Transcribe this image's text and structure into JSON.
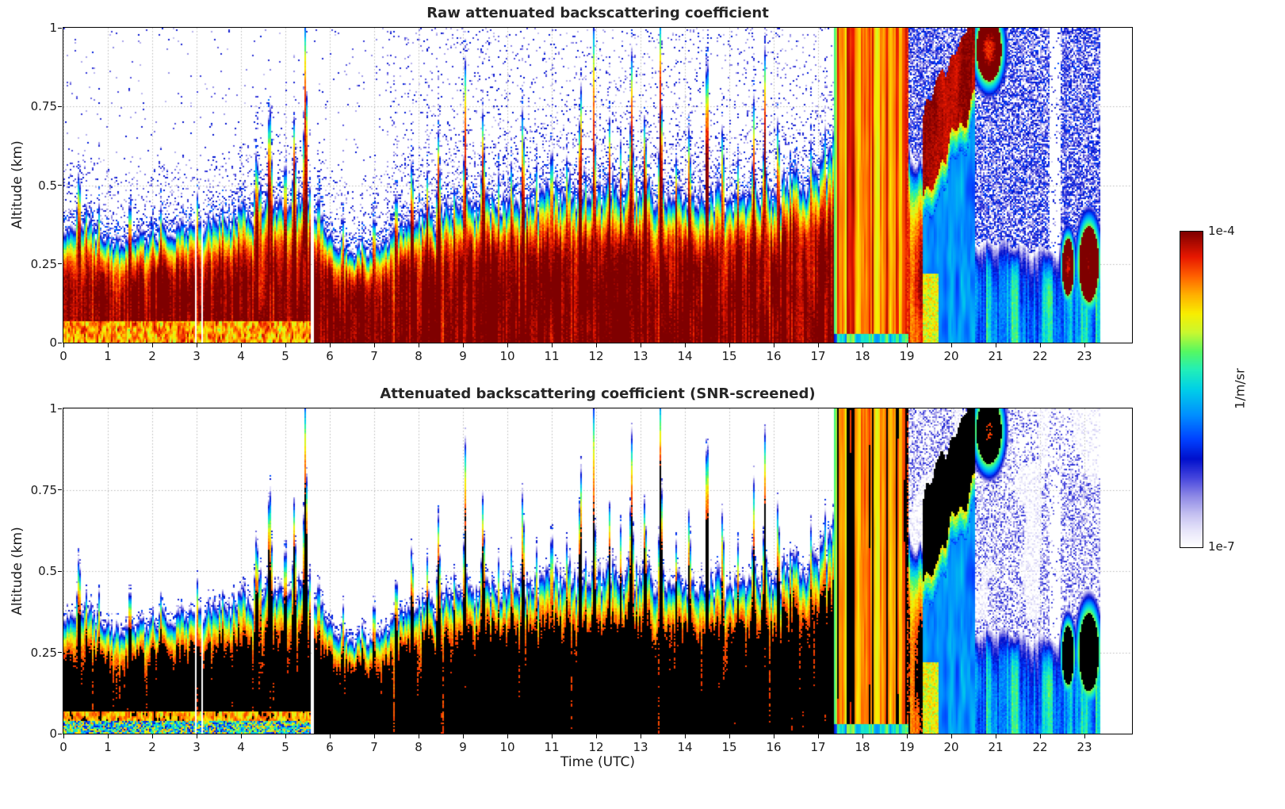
{
  "figure": {
    "background": "#ffffff"
  },
  "panels": [
    {
      "id": "raw",
      "title": "Raw attenuated backscattering coefficient",
      "screened": false
    },
    {
      "id": "screened",
      "title": "Attenuated backscattering coefficient (SNR-screened)",
      "screened": true
    }
  ],
  "axes": {
    "x": {
      "label": "Time (UTC)",
      "max": 24.07,
      "tick_values": [
        0,
        1,
        2,
        3,
        4,
        5,
        6,
        7,
        8,
        9,
        10,
        11,
        12,
        13,
        14,
        15,
        16,
        17,
        18,
        19,
        20,
        21,
        22,
        23
      ],
      "tick_labels": [
        "0",
        "1",
        "2",
        "3",
        "4",
        "5",
        "6",
        "7",
        "8",
        "9",
        "10",
        "11",
        "12",
        "13",
        "14",
        "15",
        "16",
        "17",
        "18",
        "19",
        "20",
        "21",
        "22",
        "23"
      ]
    },
    "y": {
      "label": "Altitude (km)",
      "min": 0,
      "max": 1,
      "tick_values": [
        0,
        0.25,
        0.5,
        0.75,
        1
      ],
      "tick_labels": [
        "0",
        "0.25",
        "0.5",
        "0.75",
        "1"
      ]
    }
  },
  "colorbar": {
    "max_label": "1e-4",
    "min_label": "1e-7",
    "units": "1/m/sr",
    "log10_min": -7,
    "log10_max": -4,
    "stops": [
      {
        "p": 0.0,
        "c": "#ffffff"
      },
      {
        "p": 0.05,
        "c": "#e8e6fa"
      },
      {
        "p": 0.1,
        "c": "#c8c4f2"
      },
      {
        "p": 0.16,
        "c": "#8f8ae6"
      },
      {
        "p": 0.22,
        "c": "#4444dd"
      },
      {
        "p": 0.28,
        "c": "#0010cc"
      },
      {
        "p": 0.34,
        "c": "#0040ff"
      },
      {
        "p": 0.42,
        "c": "#0090ff"
      },
      {
        "p": 0.5,
        "c": "#00d0e8"
      },
      {
        "p": 0.56,
        "c": "#20eebb"
      },
      {
        "p": 0.62,
        "c": "#55f862"
      },
      {
        "p": 0.68,
        "c": "#c8f830"
      },
      {
        "p": 0.74,
        "c": "#f8ee00"
      },
      {
        "p": 0.8,
        "c": "#ffb000"
      },
      {
        "p": 0.86,
        "c": "#ff6000"
      },
      {
        "p": 0.92,
        "c": "#e81800"
      },
      {
        "p": 1.0,
        "c": "#7f0000"
      }
    ]
  },
  "chart_data": {
    "type": "heatmap",
    "x_range_hours": [
      0,
      23.35
    ],
    "y_range_km": [
      0,
      1
    ],
    "value_units": "1/m/sr",
    "value_log10_range": [
      -7,
      -4
    ],
    "screened_black_above_log10": -4.3,
    "surface_log10_value": -3.95,
    "boundary_layer_top_km": {
      "t": [
        0,
        0.5,
        1,
        2,
        3,
        4,
        4.7,
        5,
        5.5,
        6,
        6.5,
        7,
        7.5,
        8,
        9,
        10,
        11,
        12,
        13,
        14,
        15,
        16,
        16.8,
        17.35
      ],
      "h": [
        0.38,
        0.41,
        0.34,
        0.35,
        0.37,
        0.42,
        0.5,
        0.44,
        0.48,
        0.33,
        0.3,
        0.32,
        0.36,
        0.4,
        0.43,
        0.46,
        0.48,
        0.5,
        0.5,
        0.46,
        0.47,
        0.5,
        0.55,
        0.62
      ]
    },
    "plumes": [
      {
        "t": 0.35,
        "h": 0.55,
        "w": 0.1
      },
      {
        "t": 0.8,
        "h": 0.45,
        "w": 0.08
      },
      {
        "t": 1.5,
        "h": 0.45,
        "w": 0.1
      },
      {
        "t": 2.2,
        "h": 0.44,
        "w": 0.1
      },
      {
        "t": 3.0,
        "h": 0.5,
        "w": 0.1
      },
      {
        "t": 3.6,
        "h": 0.45,
        "w": 0.08
      },
      {
        "t": 4.35,
        "h": 0.62,
        "w": 0.1
      },
      {
        "t": 4.65,
        "h": 0.78,
        "w": 0.09
      },
      {
        "t": 5.0,
        "h": 0.6,
        "w": 0.08
      },
      {
        "t": 5.2,
        "h": 0.72,
        "w": 0.07
      },
      {
        "t": 5.45,
        "h": 1.06,
        "w": 0.06
      },
      {
        "t": 5.75,
        "h": 0.5,
        "w": 0.07
      },
      {
        "t": 6.3,
        "h": 0.4,
        "w": 0.08
      },
      {
        "t": 7.0,
        "h": 0.42,
        "w": 0.08
      },
      {
        "t": 7.5,
        "h": 0.5,
        "w": 0.07
      },
      {
        "t": 7.85,
        "h": 0.6,
        "w": 0.07
      },
      {
        "t": 8.2,
        "h": 0.55,
        "w": 0.07
      },
      {
        "t": 8.45,
        "h": 0.68,
        "w": 0.07
      },
      {
        "t": 8.8,
        "h": 0.5,
        "w": 0.06
      },
      {
        "t": 9.05,
        "h": 0.92,
        "w": 0.05
      },
      {
        "t": 9.45,
        "h": 0.75,
        "w": 0.07
      },
      {
        "t": 9.8,
        "h": 0.55,
        "w": 0.06
      },
      {
        "t": 10.1,
        "h": 0.6,
        "w": 0.06
      },
      {
        "t": 10.35,
        "h": 0.78,
        "w": 0.06
      },
      {
        "t": 10.65,
        "h": 0.6,
        "w": 0.06
      },
      {
        "t": 11.0,
        "h": 0.68,
        "w": 0.06
      },
      {
        "t": 11.35,
        "h": 0.62,
        "w": 0.06
      },
      {
        "t": 11.65,
        "h": 0.85,
        "w": 0.06
      },
      {
        "t": 11.95,
        "h": 1.06,
        "w": 0.045
      },
      {
        "t": 12.3,
        "h": 0.72,
        "w": 0.06
      },
      {
        "t": 12.55,
        "h": 0.65,
        "w": 0.05
      },
      {
        "t": 12.8,
        "h": 0.95,
        "w": 0.06
      },
      {
        "t": 13.1,
        "h": 0.75,
        "w": 0.06
      },
      {
        "t": 13.45,
        "h": 1.06,
        "w": 0.055
      },
      {
        "t": 13.8,
        "h": 0.6,
        "w": 0.06
      },
      {
        "t": 14.1,
        "h": 0.72,
        "w": 0.06
      },
      {
        "t": 14.5,
        "h": 0.97,
        "w": 0.06
      },
      {
        "t": 14.85,
        "h": 0.72,
        "w": 0.06
      },
      {
        "t": 15.2,
        "h": 0.6,
        "w": 0.06
      },
      {
        "t": 15.55,
        "h": 0.8,
        "w": 0.06
      },
      {
        "t": 15.8,
        "h": 0.95,
        "w": 0.05
      },
      {
        "t": 16.1,
        "h": 0.75,
        "w": 0.06
      },
      {
        "t": 16.5,
        "h": 0.62,
        "w": 0.06
      },
      {
        "t": 16.85,
        "h": 0.68,
        "w": 0.06
      },
      {
        "t": 17.15,
        "h": 0.72,
        "w": 0.06
      }
    ],
    "rain_event": {
      "t_start": 17.35,
      "t_end": 19.05,
      "log10_value": -4.5
    },
    "elevated_layer": {
      "t_start": 19.35,
      "t_end": 20.55,
      "top_start_km": 0.72,
      "top_end_km": 1.06,
      "thickness_km": 0.26,
      "log10_value": -4.1
    },
    "noise_region": {
      "t_start": 19.0,
      "t_end": 23.35,
      "log10_value": -5.95
    },
    "weak_layer": {
      "t_start": 20.55,
      "top_km": 0.3,
      "log10_value": -5.85
    },
    "late_blobs": [
      {
        "t": 22.63,
        "z": 0.24,
        "rt": 0.13,
        "rz": 0.09,
        "log10_value": -4.2
      },
      {
        "t": 23.1,
        "z": 0.25,
        "rt": 0.22,
        "rz": 0.12,
        "log10_value": -4.0
      },
      {
        "t": 20.85,
        "z": 0.93,
        "rt": 0.28,
        "rz": 0.1,
        "log10_value": -4.3
      }
    ],
    "dropouts": [
      {
        "t": 2.97,
        "w": 0.02
      },
      {
        "t": 3.12,
        "w": 0.02
      },
      {
        "t": 5.6,
        "w": 0.035
      }
    ]
  }
}
